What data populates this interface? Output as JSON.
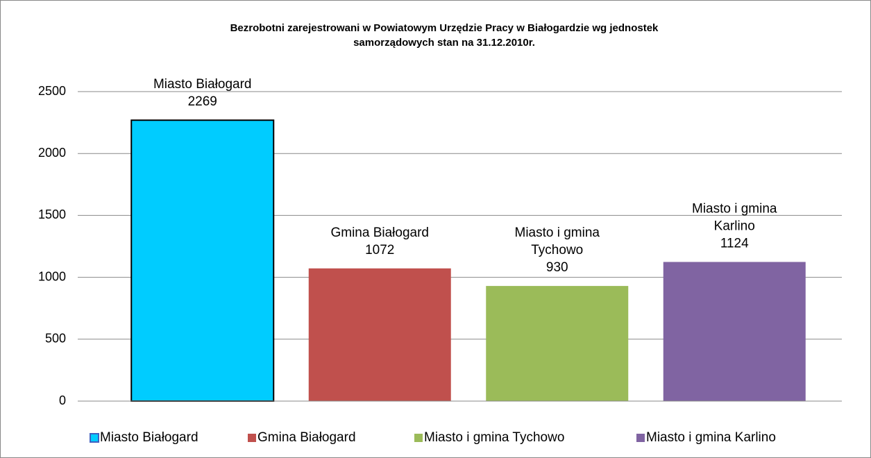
{
  "chart_data": {
    "type": "bar",
    "title": [
      "Bezrobotni zarejestrowani w Powiatowym Urzędzie Pracy w Białogardzie  wg jednostek",
      "samorządowych stan na 31.12.2010r."
    ],
    "series": [
      {
        "name": "Miasto Białogard",
        "color": "#00ccff",
        "values": [
          2269
        ]
      },
      {
        "name": "Gmina Białogard",
        "color": "#c0504d",
        "values": [
          1072
        ]
      },
      {
        "name": "Miasto i gmina Tychowo",
        "color": "#9bbb59",
        "values": [
          930
        ]
      },
      {
        "name": "Miasto i gmina Karlino",
        "color": "#8064a2",
        "values": [
          1124
        ]
      }
    ],
    "ylim": [
      0,
      2500
    ],
    "yticks": [
      0,
      500,
      1000,
      1500,
      2000,
      2500
    ],
    "grid": true,
    "legend": "bottom"
  }
}
